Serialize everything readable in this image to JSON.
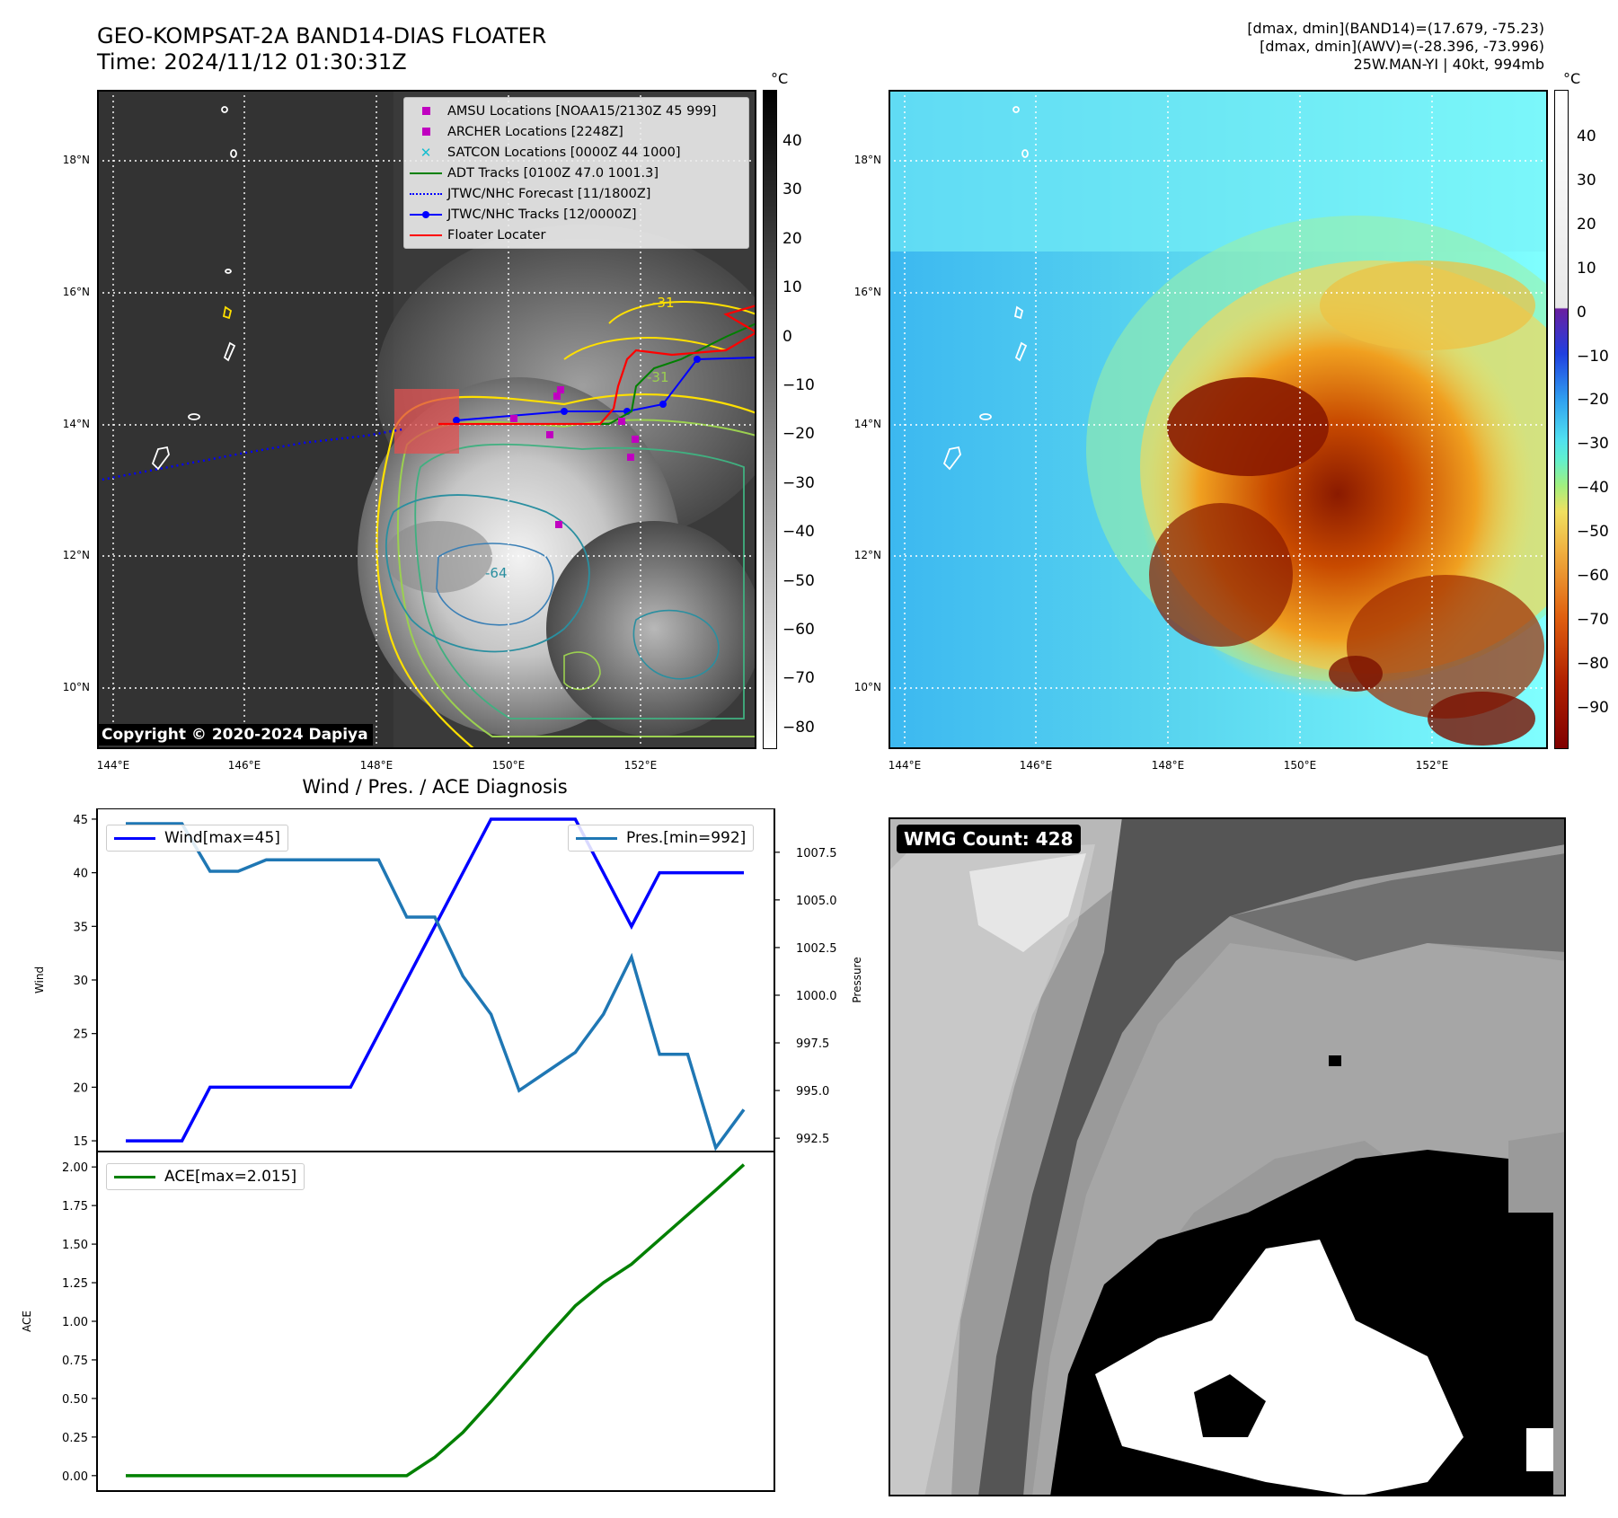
{
  "header": {
    "title_line1": "GEO-KOMPSAT-2A BAND14-DIAS FLOATER",
    "title_line2": "Time: 2024/11/12 01:30:31Z",
    "right_line1": "[dmax, dmin](BAND14)=(17.679, -75.23)",
    "right_line2": "[dmax, dmin](AWV)=(-28.396, -73.996)",
    "right_line3": "25W.MAN-YI | 40kt, 994mb"
  },
  "maps": {
    "lon_labels": [
      "144°E",
      "146°E",
      "148°E",
      "150°E",
      "152°E"
    ],
    "lat_labels": [
      "18°N",
      "16°N",
      "14°N",
      "12°N",
      "10°N"
    ],
    "lon_range": [
      143.8,
      153.8
    ],
    "lat_range": [
      9.0,
      19.0
    ],
    "contour_labels": [
      "-64",
      "-31",
      "-31"
    ],
    "copyright": "Copyright © 2020-2024 Dapiya"
  },
  "colorbar_left": {
    "unit": "°C",
    "ticks": [
      "40",
      "30",
      "20",
      "10",
      "0",
      "−10",
      "−20",
      "−30",
      "−40",
      "−50",
      "−60",
      "−70",
      "−80"
    ]
  },
  "colorbar_right": {
    "unit": "°C",
    "ticks": [
      "40",
      "30",
      "20",
      "10",
      "0",
      "−10",
      "−20",
      "−30",
      "−40",
      "−50",
      "−60",
      "−70",
      "−80",
      "−90"
    ]
  },
  "legend": {
    "items": [
      {
        "label": "AMSU Locations [NOAA15/2130Z 45 999]",
        "color": "#c000c0",
        "marker": "square"
      },
      {
        "label": "ARCHER Locations [2248Z]",
        "color": "#c000c0",
        "marker": "square"
      },
      {
        "label": "SATCON Locations [0000Z 44 1000]",
        "color": "#17becf",
        "marker": "x"
      },
      {
        "label": "ADT Tracks [0100Z 47.0 1001.3]",
        "color": "#008000",
        "marker": "line"
      },
      {
        "label": "JTWC/NHC Forecast [11/1800Z]",
        "color": "#0000ff",
        "marker": "dotted"
      },
      {
        "label": "JTWC/NHC Tracks [12/0000Z]",
        "color": "#0000ff",
        "marker": "line-dot"
      },
      {
        "label": "Floater Locater",
        "color": "#ff0000",
        "marker": "line"
      }
    ]
  },
  "wmg": {
    "label": "WMG Count: 428"
  },
  "chart_data": [
    {
      "type": "line",
      "title": "Wind / Pres. / ACE Diagnosis",
      "ylabel": "Wind",
      "y2label": "Pressure",
      "ylim": [
        14,
        46
      ],
      "y2lim": [
        991.8,
        1009.8
      ],
      "yticks": [
        "15",
        "20",
        "25",
        "30",
        "35",
        "40",
        "45"
      ],
      "y2ticks": [
        "992.5",
        "995.0",
        "997.5",
        "1000.0",
        "1002.5",
        "1005.0",
        "1007.5"
      ],
      "x": [
        0,
        1,
        2,
        3,
        4,
        5,
        6,
        7,
        8,
        9,
        10,
        11,
        12,
        13,
        14,
        15,
        16,
        17,
        18,
        19,
        20,
        21,
        22
      ],
      "series": [
        {
          "name": "Wind[max=45]",
          "axis": "left",
          "color": "#0000ff",
          "values": [
            15,
            15,
            15,
            20,
            20,
            20,
            20,
            20,
            20,
            25,
            30,
            35,
            40,
            45,
            45,
            45,
            45,
            40,
            35,
            40,
            40,
            40,
            40
          ]
        },
        {
          "name": "Pres.[min=992]",
          "axis": "right",
          "color": "#1f77b4",
          "values": [
            1009,
            1009,
            1009,
            1006.5,
            1006.5,
            1007.1,
            1007.1,
            1007.1,
            1007.1,
            1007.1,
            1004.1,
            1004.1,
            1001,
            999,
            995,
            996,
            997,
            999,
            1002,
            996.9,
            996.9,
            992,
            994
          ]
        }
      ]
    },
    {
      "type": "line",
      "ylabel": "ACE",
      "ylim": [
        -0.1,
        2.1
      ],
      "yticks": [
        "0.00",
        "0.25",
        "0.50",
        "0.75",
        "1.00",
        "1.25",
        "1.50",
        "1.75",
        "2.00"
      ],
      "x": [
        0,
        1,
        2,
        3,
        4,
        5,
        6,
        7,
        8,
        9,
        10,
        11,
        12,
        13,
        14,
        15,
        16,
        17,
        18,
        19,
        20,
        21,
        22
      ],
      "series": [
        {
          "name": "ACE[max=2.015]",
          "color": "#008000",
          "values": [
            0,
            0,
            0,
            0,
            0,
            0,
            0,
            0,
            0,
            0,
            0,
            0.12,
            0.28,
            0.48,
            0.69,
            0.9,
            1.1,
            1.25,
            1.37,
            1.53,
            1.69,
            1.85,
            2.015
          ]
        }
      ]
    }
  ]
}
